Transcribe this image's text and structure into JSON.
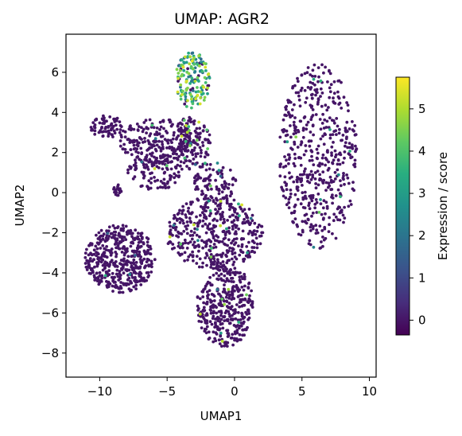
{
  "chart_data": {
    "type": "scatter",
    "title": "UMAP: AGR2",
    "xlabel": "UMAP1",
    "ylabel": "UMAP2",
    "xlim": [
      -12.5,
      10.5
    ],
    "ylim": [
      -9.2,
      7.9
    ],
    "xticks": [
      -10,
      -5,
      0,
      5,
      10
    ],
    "yticks": [
      -8,
      -6,
      -4,
      -2,
      0,
      2,
      4,
      6
    ],
    "colorbar": {
      "label": "Expression / score",
      "colormap": "viridis",
      "range": [
        -0.35,
        5.75
      ],
      "ticks": [
        0,
        1,
        2,
        3,
        4,
        5
      ]
    },
    "clusters": [
      {
        "cx": 6.2,
        "cy": 1.8,
        "rx": 2.9,
        "ry": 4.6,
        "n": 520,
        "expr_frac": 0.02
      },
      {
        "cx": -3.1,
        "cy": 5.6,
        "rx": 1.3,
        "ry": 1.4,
        "n": 160,
        "expr_frac": 0.85
      },
      {
        "cx": -3.2,
        "cy": 2.4,
        "rx": 1.5,
        "ry": 1.4,
        "n": 160,
        "expr_frac": 0.12
      },
      {
        "cx": -5.8,
        "cy": 2.6,
        "rx": 2.8,
        "ry": 1.1,
        "n": 200,
        "expr_frac": 0.02
      },
      {
        "cx": -9.5,
        "cy": 3.3,
        "rx": 1.2,
        "ry": 0.6,
        "n": 70,
        "expr_frac": 0.0
      },
      {
        "cx": -6.0,
        "cy": 1.0,
        "rx": 2.0,
        "ry": 0.9,
        "n": 110,
        "expr_frac": 0.03
      },
      {
        "cx": -8.5,
        "cy": -3.3,
        "rx": 2.6,
        "ry": 1.7,
        "n": 460,
        "expr_frac": 0.01
      },
      {
        "cx": -1.5,
        "cy": -2.0,
        "rx": 3.6,
        "ry": 1.8,
        "n": 420,
        "expr_frac": 0.04
      },
      {
        "cx": -0.7,
        "cy": -5.6,
        "rx": 2.1,
        "ry": 2.1,
        "n": 380,
        "expr_frac": 0.02
      },
      {
        "cx": -1.5,
        "cy": 0.5,
        "rx": 1.6,
        "ry": 1.0,
        "n": 90,
        "expr_frac": 0.05
      },
      {
        "cx": -8.7,
        "cy": 0.1,
        "rx": 0.3,
        "ry": 0.3,
        "n": 18,
        "expr_frac": 0.0
      }
    ]
  }
}
